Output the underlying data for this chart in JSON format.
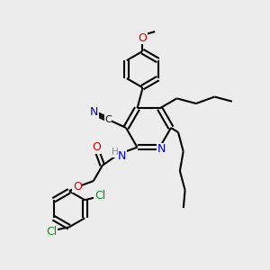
{
  "bg_color": "#ececec",
  "bond_color": "#000000",
  "atom_colors": {
    "N": "#0000cc",
    "O": "#cc0000",
    "Cl": "#009900",
    "H": "#888888"
  },
  "line_width": 1.5,
  "figsize": [
    3.0,
    3.0
  ],
  "dpi": 100
}
